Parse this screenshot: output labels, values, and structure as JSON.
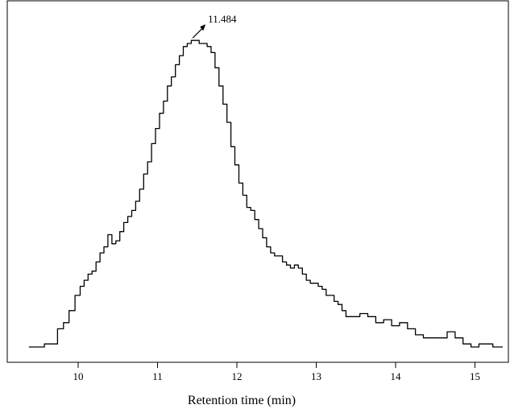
{
  "chart_data": {
    "type": "line",
    "title": "",
    "xlabel": "Retention time (min)",
    "ylabel": "",
    "xlim": [
      9.0,
      15.35
    ],
    "ylim": [
      0,
      1.0
    ],
    "x_ticks": [
      10,
      11,
      12,
      13,
      14,
      15
    ],
    "x_tick_labels": [
      "10",
      "11",
      "12",
      "13",
      "14",
      "15"
    ],
    "grid": false,
    "legend": "none",
    "line_color": "#000000",
    "series": [
      {
        "x": [
          9.38,
          9.55,
          9.6,
          9.7,
          9.78,
          9.85,
          9.92,
          10.0,
          10.05,
          10.1,
          10.15,
          10.2,
          10.25,
          10.3,
          10.35,
          10.4,
          10.45,
          10.5,
          10.55,
          10.6,
          10.65,
          10.7,
          10.75,
          10.8,
          10.85,
          10.9,
          10.95,
          11.0,
          11.05,
          11.1,
          11.15,
          11.2,
          11.25,
          11.3,
          11.35,
          11.4,
          11.45,
          11.5,
          11.55,
          11.6,
          11.65,
          11.7,
          11.75,
          11.8,
          11.85,
          11.9,
          11.95,
          12.0,
          12.05,
          12.1,
          12.15,
          12.2,
          12.25,
          12.3,
          12.35,
          12.4,
          12.45,
          12.5,
          12.55,
          12.6,
          12.65,
          12.7,
          12.75,
          12.8,
          12.85,
          12.9,
          12.95,
          13.0,
          13.05,
          13.1,
          13.15,
          13.2,
          13.25,
          13.3,
          13.35,
          13.4,
          13.5,
          13.6,
          13.7,
          13.8,
          13.9,
          14.0,
          14.1,
          14.2,
          14.3,
          14.4,
          14.5,
          14.6,
          14.7,
          14.8,
          14.9,
          15.0,
          15.1,
          15.35
        ],
        "y": [
          0.0,
          0.0,
          0.01,
          0.01,
          0.06,
          0.08,
          0.12,
          0.17,
          0.2,
          0.22,
          0.24,
          0.25,
          0.28,
          0.31,
          0.33,
          0.37,
          0.34,
          0.35,
          0.38,
          0.41,
          0.43,
          0.45,
          0.48,
          0.52,
          0.57,
          0.61,
          0.67,
          0.72,
          0.77,
          0.81,
          0.86,
          0.89,
          0.93,
          0.96,
          0.99,
          1.0,
          1.01,
          1.01,
          1.0,
          1.0,
          0.99,
          0.97,
          0.92,
          0.86,
          0.8,
          0.74,
          0.66,
          0.6,
          0.54,
          0.5,
          0.46,
          0.45,
          0.42,
          0.39,
          0.36,
          0.33,
          0.31,
          0.3,
          0.3,
          0.28,
          0.27,
          0.26,
          0.27,
          0.26,
          0.24,
          0.22,
          0.21,
          0.21,
          0.2,
          0.19,
          0.17,
          0.17,
          0.15,
          0.14,
          0.12,
          0.1,
          0.1,
          0.11,
          0.1,
          0.08,
          0.09,
          0.07,
          0.08,
          0.06,
          0.04,
          0.03,
          0.03,
          0.03,
          0.05,
          0.03,
          0.01,
          0.0,
          0.01,
          0.0
        ]
      }
    ],
    "annotation": {
      "text": "11.484",
      "x": 11.484,
      "y": 1.01
    }
  }
}
